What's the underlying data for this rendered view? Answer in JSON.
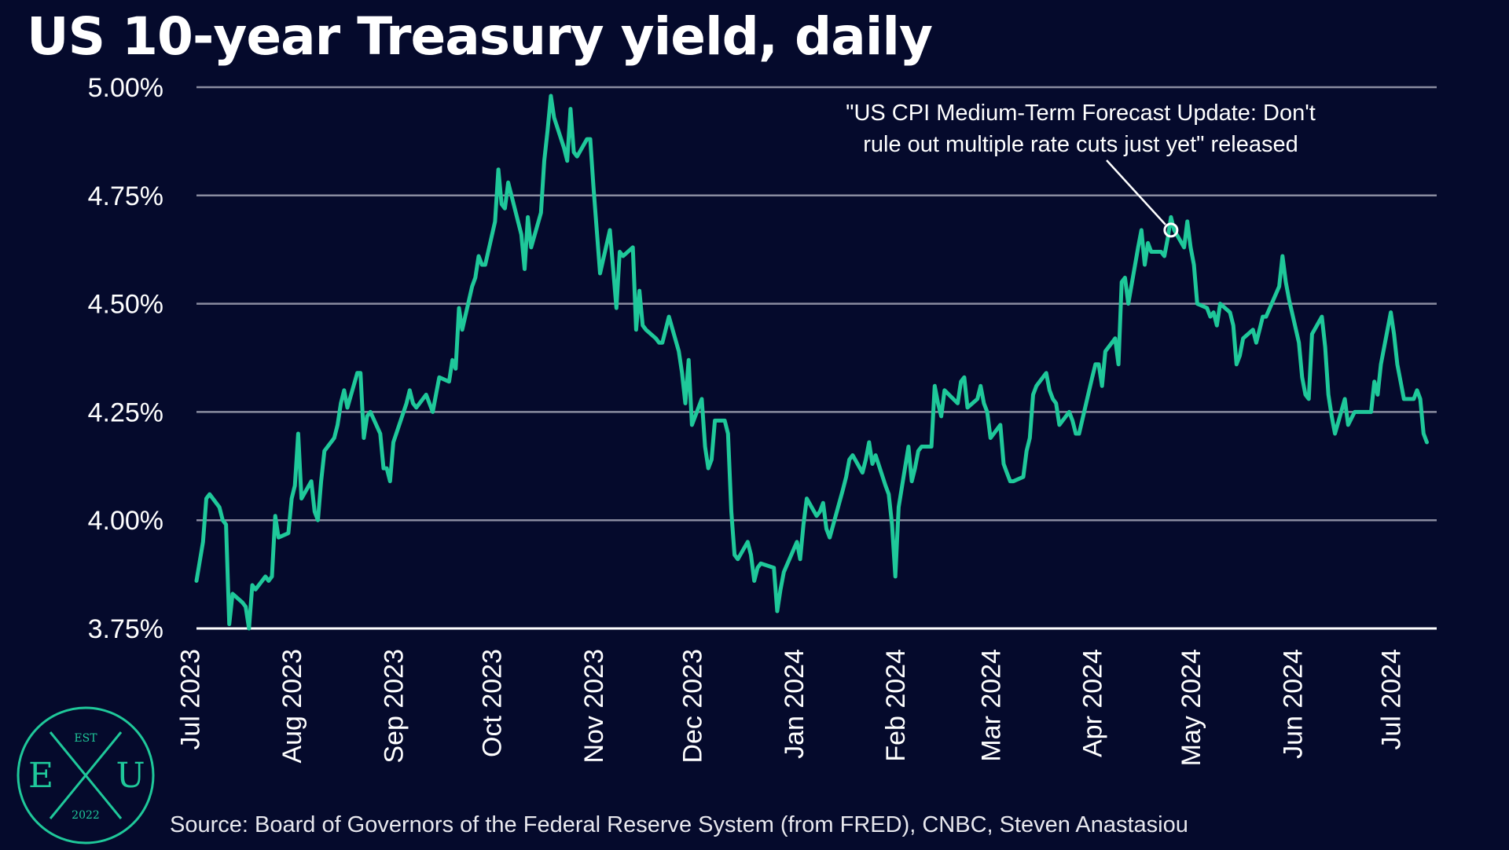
{
  "header": {
    "title": "US 10-year Treasury yield, daily"
  },
  "footer": {
    "source": "Source: Board of Governors of the Federal Reserve System (from FRED), CNBC, Steven Anastasiou"
  },
  "logo": {
    "top_text": "EST",
    "left_letter": "E",
    "center_letter": "X",
    "right_letter": "U",
    "bottom_text": "2022"
  },
  "colors": {
    "background": "#050a2c",
    "line": "#1fc89a",
    "grid": "#8a8ca0",
    "logo": "#1fc89a",
    "text": "#ffffff"
  },
  "chart_data": {
    "type": "line",
    "title": "US 10-year Treasury yield, daily",
    "xlabel": "",
    "ylabel": "",
    "ylim": [
      3.75,
      5.0
    ],
    "xlim": [
      "2023-07-03",
      "2024-07-15"
    ],
    "y_ticks": [
      3.75,
      4.0,
      4.25,
      4.5,
      4.75,
      5.0
    ],
    "y_tick_labels": [
      "3.75%",
      "4.00%",
      "4.25%",
      "4.50%",
      "4.75%",
      "5.00%"
    ],
    "x_ticks": [
      "2023-07-01",
      "2023-08-01",
      "2023-09-01",
      "2023-10-01",
      "2023-11-01",
      "2023-12-01",
      "2024-01-01",
      "2024-02-01",
      "2024-03-01",
      "2024-04-01",
      "2024-05-01",
      "2024-06-01",
      "2024-07-01"
    ],
    "x_tick_labels": [
      "Jul 2023",
      "Aug 2023",
      "Sep 2023",
      "Oct 2023",
      "Nov 2023",
      "Dec 2023",
      "Jan 2024",
      "Feb 2024",
      "Mar 2024",
      "Apr 2024",
      "May 2024",
      "Jun 2024",
      "Jul 2024"
    ],
    "grid": true,
    "legend": "none",
    "series": [
      {
        "points": [
          [
            "2023-07-03",
            3.86
          ],
          [
            "2023-07-05",
            3.95
          ],
          [
            "2023-07-06",
            4.05
          ],
          [
            "2023-07-07",
            4.06
          ],
          [
            "2023-07-10",
            4.03
          ],
          [
            "2023-07-11",
            4.0
          ],
          [
            "2023-07-12",
            3.99
          ],
          [
            "2023-07-13",
            3.76
          ],
          [
            "2023-07-14",
            3.83
          ],
          [
            "2023-07-17",
            3.81
          ],
          [
            "2023-07-18",
            3.8
          ],
          [
            "2023-07-19",
            3.75
          ],
          [
            "2023-07-20",
            3.85
          ],
          [
            "2023-07-21",
            3.84
          ],
          [
            "2023-07-24",
            3.87
          ],
          [
            "2023-07-25",
            3.86
          ],
          [
            "2023-07-26",
            3.87
          ],
          [
            "2023-07-27",
            4.01
          ],
          [
            "2023-07-28",
            3.96
          ],
          [
            "2023-07-31",
            3.97
          ],
          [
            "2023-08-01",
            4.05
          ],
          [
            "2023-08-02",
            4.08
          ],
          [
            "2023-08-03",
            4.2
          ],
          [
            "2023-08-04",
            4.05
          ],
          [
            "2023-08-07",
            4.09
          ],
          [
            "2023-08-08",
            4.02
          ],
          [
            "2023-08-09",
            4.0
          ],
          [
            "2023-08-10",
            4.09
          ],
          [
            "2023-08-11",
            4.16
          ],
          [
            "2023-08-14",
            4.19
          ],
          [
            "2023-08-15",
            4.22
          ],
          [
            "2023-08-16",
            4.27
          ],
          [
            "2023-08-17",
            4.3
          ],
          [
            "2023-08-18",
            4.26
          ],
          [
            "2023-08-21",
            4.34
          ],
          [
            "2023-08-22",
            4.34
          ],
          [
            "2023-08-23",
            4.19
          ],
          [
            "2023-08-24",
            4.24
          ],
          [
            "2023-08-25",
            4.25
          ],
          [
            "2023-08-28",
            4.2
          ],
          [
            "2023-08-29",
            4.12
          ],
          [
            "2023-08-30",
            4.12
          ],
          [
            "2023-08-31",
            4.09
          ],
          [
            "2023-09-01",
            4.18
          ],
          [
            "2023-09-05",
            4.27
          ],
          [
            "2023-09-06",
            4.3
          ],
          [
            "2023-09-07",
            4.27
          ],
          [
            "2023-09-08",
            4.26
          ],
          [
            "2023-09-11",
            4.29
          ],
          [
            "2023-09-12",
            4.27
          ],
          [
            "2023-09-13",
            4.25
          ],
          [
            "2023-09-14",
            4.29
          ],
          [
            "2023-09-15",
            4.33
          ],
          [
            "2023-09-18",
            4.32
          ],
          [
            "2023-09-19",
            4.37
          ],
          [
            "2023-09-20",
            4.35
          ],
          [
            "2023-09-21",
            4.49
          ],
          [
            "2023-09-22",
            4.44
          ],
          [
            "2023-09-25",
            4.54
          ],
          [
            "2023-09-26",
            4.56
          ],
          [
            "2023-09-27",
            4.61
          ],
          [
            "2023-09-28",
            4.59
          ],
          [
            "2023-09-29",
            4.59
          ],
          [
            "2023-10-02",
            4.69
          ],
          [
            "2023-10-03",
            4.81
          ],
          [
            "2023-10-04",
            4.73
          ],
          [
            "2023-10-05",
            4.72
          ],
          [
            "2023-10-06",
            4.78
          ],
          [
            "2023-10-10",
            4.66
          ],
          [
            "2023-10-11",
            4.58
          ],
          [
            "2023-10-12",
            4.7
          ],
          [
            "2023-10-13",
            4.63
          ],
          [
            "2023-10-16",
            4.71
          ],
          [
            "2023-10-17",
            4.83
          ],
          [
            "2023-10-18",
            4.9
          ],
          [
            "2023-10-19",
            4.98
          ],
          [
            "2023-10-20",
            4.93
          ],
          [
            "2023-10-23",
            4.86
          ],
          [
            "2023-10-24",
            4.83
          ],
          [
            "2023-10-25",
            4.95
          ],
          [
            "2023-10-26",
            4.85
          ],
          [
            "2023-10-27",
            4.84
          ],
          [
            "2023-10-30",
            4.88
          ],
          [
            "2023-10-31",
            4.88
          ],
          [
            "2023-11-01",
            4.77
          ],
          [
            "2023-11-02",
            4.67
          ],
          [
            "2023-11-03",
            4.57
          ],
          [
            "2023-11-06",
            4.67
          ],
          [
            "2023-11-07",
            4.58
          ],
          [
            "2023-11-08",
            4.49
          ],
          [
            "2023-11-09",
            4.62
          ],
          [
            "2023-11-10",
            4.61
          ],
          [
            "2023-11-13",
            4.63
          ],
          [
            "2023-11-14",
            4.44
          ],
          [
            "2023-11-15",
            4.53
          ],
          [
            "2023-11-16",
            4.45
          ],
          [
            "2023-11-17",
            4.44
          ],
          [
            "2023-11-20",
            4.42
          ],
          [
            "2023-11-21",
            4.41
          ],
          [
            "2023-11-22",
            4.41
          ],
          [
            "2023-11-24",
            4.47
          ],
          [
            "2023-11-27",
            4.39
          ],
          [
            "2023-11-28",
            4.34
          ],
          [
            "2023-11-29",
            4.27
          ],
          [
            "2023-11-30",
            4.37
          ],
          [
            "2023-12-01",
            4.22
          ],
          [
            "2023-12-04",
            4.28
          ],
          [
            "2023-12-05",
            4.17
          ],
          [
            "2023-12-06",
            4.12
          ],
          [
            "2023-12-07",
            4.14
          ],
          [
            "2023-12-08",
            4.23
          ],
          [
            "2023-12-11",
            4.23
          ],
          [
            "2023-12-12",
            4.2
          ],
          [
            "2023-12-13",
            4.02
          ],
          [
            "2023-12-14",
            3.92
          ],
          [
            "2023-12-15",
            3.91
          ],
          [
            "2023-12-18",
            3.95
          ],
          [
            "2023-12-19",
            3.92
          ],
          [
            "2023-12-20",
            3.86
          ],
          [
            "2023-12-21",
            3.89
          ],
          [
            "2023-12-22",
            3.9
          ],
          [
            "2023-12-26",
            3.89
          ],
          [
            "2023-12-27",
            3.79
          ],
          [
            "2023-12-28",
            3.84
          ],
          [
            "2023-12-29",
            3.88
          ],
          [
            "2024-01-02",
            3.95
          ],
          [
            "2024-01-03",
            3.91
          ],
          [
            "2024-01-04",
            3.99
          ],
          [
            "2024-01-05",
            4.05
          ],
          [
            "2024-01-08",
            4.01
          ],
          [
            "2024-01-09",
            4.02
          ],
          [
            "2024-01-10",
            4.04
          ],
          [
            "2024-01-11",
            3.98
          ],
          [
            "2024-01-12",
            3.96
          ],
          [
            "2024-01-16",
            4.07
          ],
          [
            "2024-01-17",
            4.1
          ],
          [
            "2024-01-18",
            4.14
          ],
          [
            "2024-01-19",
            4.15
          ],
          [
            "2024-01-22",
            4.11
          ],
          [
            "2024-01-23",
            4.14
          ],
          [
            "2024-01-24",
            4.18
          ],
          [
            "2024-01-25",
            4.13
          ],
          [
            "2024-01-26",
            4.15
          ],
          [
            "2024-01-29",
            4.08
          ],
          [
            "2024-01-30",
            4.06
          ],
          [
            "2024-01-31",
            3.99
          ],
          [
            "2024-02-01",
            3.87
          ],
          [
            "2024-02-02",
            4.03
          ],
          [
            "2024-02-05",
            4.17
          ],
          [
            "2024-02-06",
            4.09
          ],
          [
            "2024-02-07",
            4.12
          ],
          [
            "2024-02-08",
            4.16
          ],
          [
            "2024-02-09",
            4.17
          ],
          [
            "2024-02-12",
            4.17
          ],
          [
            "2024-02-13",
            4.31
          ],
          [
            "2024-02-14",
            4.27
          ],
          [
            "2024-02-15",
            4.24
          ],
          [
            "2024-02-16",
            4.3
          ],
          [
            "2024-02-20",
            4.27
          ],
          [
            "2024-02-21",
            4.32
          ],
          [
            "2024-02-22",
            4.33
          ],
          [
            "2024-02-23",
            4.26
          ],
          [
            "2024-02-26",
            4.28
          ],
          [
            "2024-02-27",
            4.31
          ],
          [
            "2024-02-28",
            4.27
          ],
          [
            "2024-02-29",
            4.25
          ],
          [
            "2024-03-01",
            4.19
          ],
          [
            "2024-03-04",
            4.22
          ],
          [
            "2024-03-05",
            4.13
          ],
          [
            "2024-03-06",
            4.11
          ],
          [
            "2024-03-07",
            4.09
          ],
          [
            "2024-03-08",
            4.09
          ],
          [
            "2024-03-11",
            4.1
          ],
          [
            "2024-03-12",
            4.16
          ],
          [
            "2024-03-13",
            4.19
          ],
          [
            "2024-03-14",
            4.29
          ],
          [
            "2024-03-15",
            4.31
          ],
          [
            "2024-03-18",
            4.34
          ],
          [
            "2024-03-19",
            4.3
          ],
          [
            "2024-03-20",
            4.28
          ],
          [
            "2024-03-21",
            4.27
          ],
          [
            "2024-03-22",
            4.22
          ],
          [
            "2024-03-25",
            4.25
          ],
          [
            "2024-03-26",
            4.23
          ],
          [
            "2024-03-27",
            4.2
          ],
          [
            "2024-03-28",
            4.2
          ],
          [
            "2024-04-01",
            4.33
          ],
          [
            "2024-04-02",
            4.36
          ],
          [
            "2024-04-03",
            4.36
          ],
          [
            "2024-04-04",
            4.31
          ],
          [
            "2024-04-05",
            4.39
          ],
          [
            "2024-04-08",
            4.42
          ],
          [
            "2024-04-09",
            4.36
          ],
          [
            "2024-04-10",
            4.55
          ],
          [
            "2024-04-11",
            4.56
          ],
          [
            "2024-04-12",
            4.5
          ],
          [
            "2024-04-15",
            4.63
          ],
          [
            "2024-04-16",
            4.67
          ],
          [
            "2024-04-17",
            4.59
          ],
          [
            "2024-04-18",
            4.64
          ],
          [
            "2024-04-19",
            4.62
          ],
          [
            "2024-04-22",
            4.62
          ],
          [
            "2024-04-23",
            4.61
          ],
          [
            "2024-04-24",
            4.65
          ],
          [
            "2024-04-25",
            4.7
          ],
          [
            "2024-04-26",
            4.67
          ],
          [
            "2024-04-29",
            4.63
          ],
          [
            "2024-04-30",
            4.69
          ],
          [
            "2024-05-01",
            4.63
          ],
          [
            "2024-05-02",
            4.59
          ],
          [
            "2024-05-03",
            4.5
          ],
          [
            "2024-05-06",
            4.49
          ],
          [
            "2024-05-07",
            4.47
          ],
          [
            "2024-05-08",
            4.48
          ],
          [
            "2024-05-09",
            4.45
          ],
          [
            "2024-05-10",
            4.5
          ],
          [
            "2024-05-13",
            4.48
          ],
          [
            "2024-05-14",
            4.45
          ],
          [
            "2024-05-15",
            4.36
          ],
          [
            "2024-05-16",
            4.38
          ],
          [
            "2024-05-17",
            4.42
          ],
          [
            "2024-05-20",
            4.44
          ],
          [
            "2024-05-21",
            4.41
          ],
          [
            "2024-05-22",
            4.44
          ],
          [
            "2024-05-23",
            4.47
          ],
          [
            "2024-05-24",
            4.47
          ],
          [
            "2024-05-28",
            4.54
          ],
          [
            "2024-05-29",
            4.61
          ],
          [
            "2024-05-30",
            4.55
          ],
          [
            "2024-05-31",
            4.51
          ],
          [
            "2024-06-03",
            4.41
          ],
          [
            "2024-06-04",
            4.33
          ],
          [
            "2024-06-05",
            4.29
          ],
          [
            "2024-06-06",
            4.28
          ],
          [
            "2024-06-07",
            4.43
          ],
          [
            "2024-06-10",
            4.47
          ],
          [
            "2024-06-11",
            4.4
          ],
          [
            "2024-06-12",
            4.29
          ],
          [
            "2024-06-13",
            4.24
          ],
          [
            "2024-06-14",
            4.2
          ],
          [
            "2024-06-17",
            4.28
          ],
          [
            "2024-06-18",
            4.22
          ],
          [
            "2024-06-20",
            4.25
          ],
          [
            "2024-06-21",
            4.25
          ],
          [
            "2024-06-24",
            4.25
          ],
          [
            "2024-06-25",
            4.25
          ],
          [
            "2024-06-26",
            4.32
          ],
          [
            "2024-06-27",
            4.29
          ],
          [
            "2024-06-28",
            4.36
          ],
          [
            "2024-07-01",
            4.48
          ],
          [
            "2024-07-02",
            4.43
          ],
          [
            "2024-07-03",
            4.36
          ],
          [
            "2024-07-05",
            4.28
          ],
          [
            "2024-07-08",
            4.28
          ],
          [
            "2024-07-09",
            4.3
          ],
          [
            "2024-07-10",
            4.28
          ],
          [
            "2024-07-11",
            4.2
          ],
          [
            "2024-07-12",
            4.18
          ]
        ]
      }
    ],
    "annotations": [
      {
        "text_lines": [
          "\"US CPI Medium-Term Forecast Update: Don't",
          "rule out multiple rate cuts just yet\" released"
        ],
        "point": [
          "2024-04-25",
          4.67
        ]
      }
    ]
  }
}
